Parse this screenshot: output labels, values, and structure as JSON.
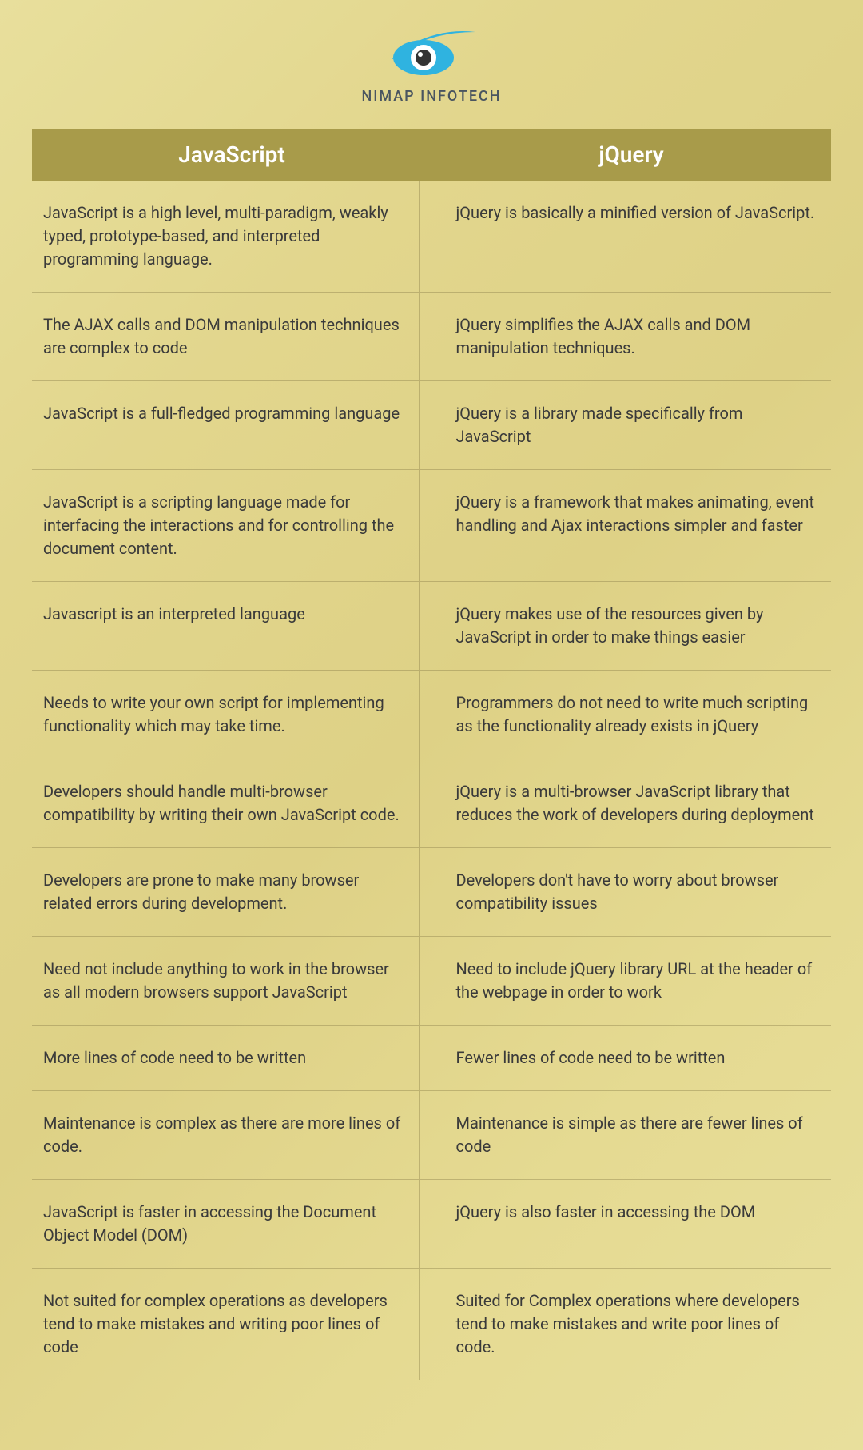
{
  "brand": {
    "name": "NIMAP INFOTECH"
  },
  "colors": {
    "header_bg": "#a89b4a",
    "header_text": "#ffffff",
    "body_text": "#3a3a3a",
    "divider": "rgba(120,110,60,0.35)",
    "page_bg_start": "#e8df9c",
    "page_bg_end": "#ded186",
    "logo_accent": "#2fb3e0",
    "logo_dark": "#333333"
  },
  "table": {
    "columns": [
      "JavaScript",
      "jQuery"
    ],
    "rows": [
      [
        "JavaScript is a high level, multi-paradigm, weakly typed, prototype-based, and interpreted programming language.",
        "jQuery is basically a minified version of JavaScript."
      ],
      [
        "The AJAX calls and DOM manipulation techniques are complex to code",
        "jQuery simplifies the AJAX calls and DOM manipulation techniques."
      ],
      [
        "JavaScript is a full-fledged programming language",
        "jQuery is a library made specifically from JavaScript"
      ],
      [
        "JavaScript is a scripting language made for interfacing the interactions and for controlling the document content.",
        "jQuery is a framework  that makes animating, event handling and Ajax interactions simpler and faster"
      ],
      [
        "Javascript is an interpreted language",
        "jQuery makes use of the resources given by JavaScript in order to make things easier"
      ],
      [
        "Needs to write your own script for implementing functionality which may take time.",
        "Programmers do not need to write much scripting as the functionality already exists in jQuery"
      ],
      [
        "Developers should handle multi-browser compatibility by writing their own JavaScript code.",
        "jQuery is a multi-browser JavaScript library that reduces the work of developers during deployment"
      ],
      [
        "Developers are prone to make many browser related errors during development.",
        "Developers don't have to worry about browser compatibility issues"
      ],
      [
        "Need not include anything to work in the browser as all modern browsers support JavaScript",
        "Need to include jQuery library URL at the header of the webpage in order to work"
      ],
      [
        "More lines of code need to be written",
        "Fewer lines of code need to be written"
      ],
      [
        "Maintenance is complex as there are more lines of code.",
        "Maintenance is simple as there are fewer lines of code"
      ],
      [
        "JavaScript is faster in accessing the Document Object Model (DOM)",
        "jQuery is also faster in accessing the DOM"
      ],
      [
        "Not suited for complex operations as developers tend to make mistakes and writing poor lines of code",
        "Suited for Complex operations where developers tend to make mistakes and write poor lines of code."
      ]
    ]
  }
}
